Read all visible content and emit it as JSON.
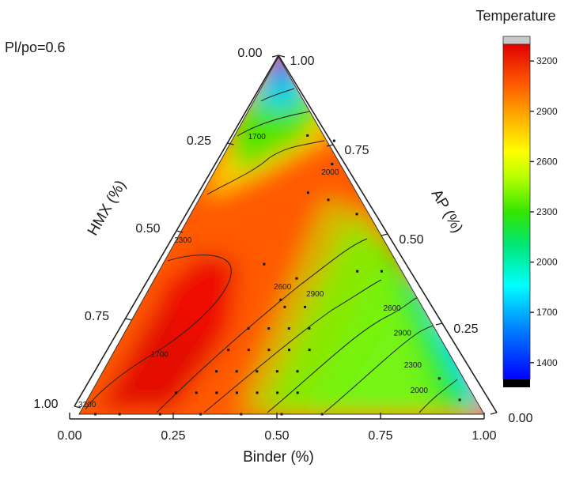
{
  "corner_label": "Pl/po=0.6",
  "chart_data": {
    "type": "heatmap",
    "subtype": "ternary-contour",
    "title": "",
    "axes": {
      "bottom": {
        "label": "Binder (%)",
        "ticks": [
          "0.00",
          "0.25",
          "0.50",
          "0.75",
          "1.00"
        ]
      },
      "left": {
        "label": "HMX (%)",
        "ticks": [
          "0.00",
          "0.25",
          "0.50",
          "0.75",
          "1.00"
        ]
      },
      "right": {
        "label": "AP (%)",
        "ticks": [
          "1.00",
          "0.75",
          "0.50",
          "0.25",
          "0.00"
        ]
      }
    },
    "colorbar": {
      "title": "Temperature",
      "range": [
        1300,
        3300
      ],
      "ticks": [
        "3200",
        "2900",
        "2600",
        "2300",
        "2000",
        "1700",
        "1400"
      ],
      "colors": [
        "#000000",
        "#0000ff",
        "#00bfff",
        "#00ffff",
        "#00e600",
        "#b3ff00",
        "#ffff00",
        "#ffb000",
        "#ff6000",
        "#ff1a00",
        "#d40000",
        "#c0c0c0"
      ]
    },
    "contour_labels": [
      {
        "text": "1700",
        "ternary": [
          0.06,
          0.77,
          0.17
        ]
      },
      {
        "text": "2000",
        "ternary": [
          0.81,
          0.06,
          0.13
        ]
      },
      {
        "text": "2300",
        "ternary": [
          0.76,
          0.13,
          0.11
        ]
      },
      {
        "text": "2600",
        "ternary": [
          0.63,
          0.29,
          0.08
        ]
      },
      {
        "text": "2900",
        "ternary": [
          0.69,
          0.22,
          0.09
        ]
      },
      {
        "text": "2000",
        "ternary": [
          0.29,
          0.67,
          0.04
        ]
      },
      {
        "text": "2300",
        "ternary": [
          0.02,
          0.48,
          0.5
        ]
      },
      {
        "text": "2600",
        "ternary": [
          0.33,
          0.35,
          0.32
        ]
      },
      {
        "text": "2900",
        "ternary": [
          0.42,
          0.33,
          0.25
        ]
      },
      {
        "text": "1700",
        "ternary": [
          0.12,
          0.16,
          0.72
        ]
      },
      {
        "text": "3200",
        "ternary": [
          0.01,
          0.02,
          0.97
        ]
      }
    ]
  }
}
